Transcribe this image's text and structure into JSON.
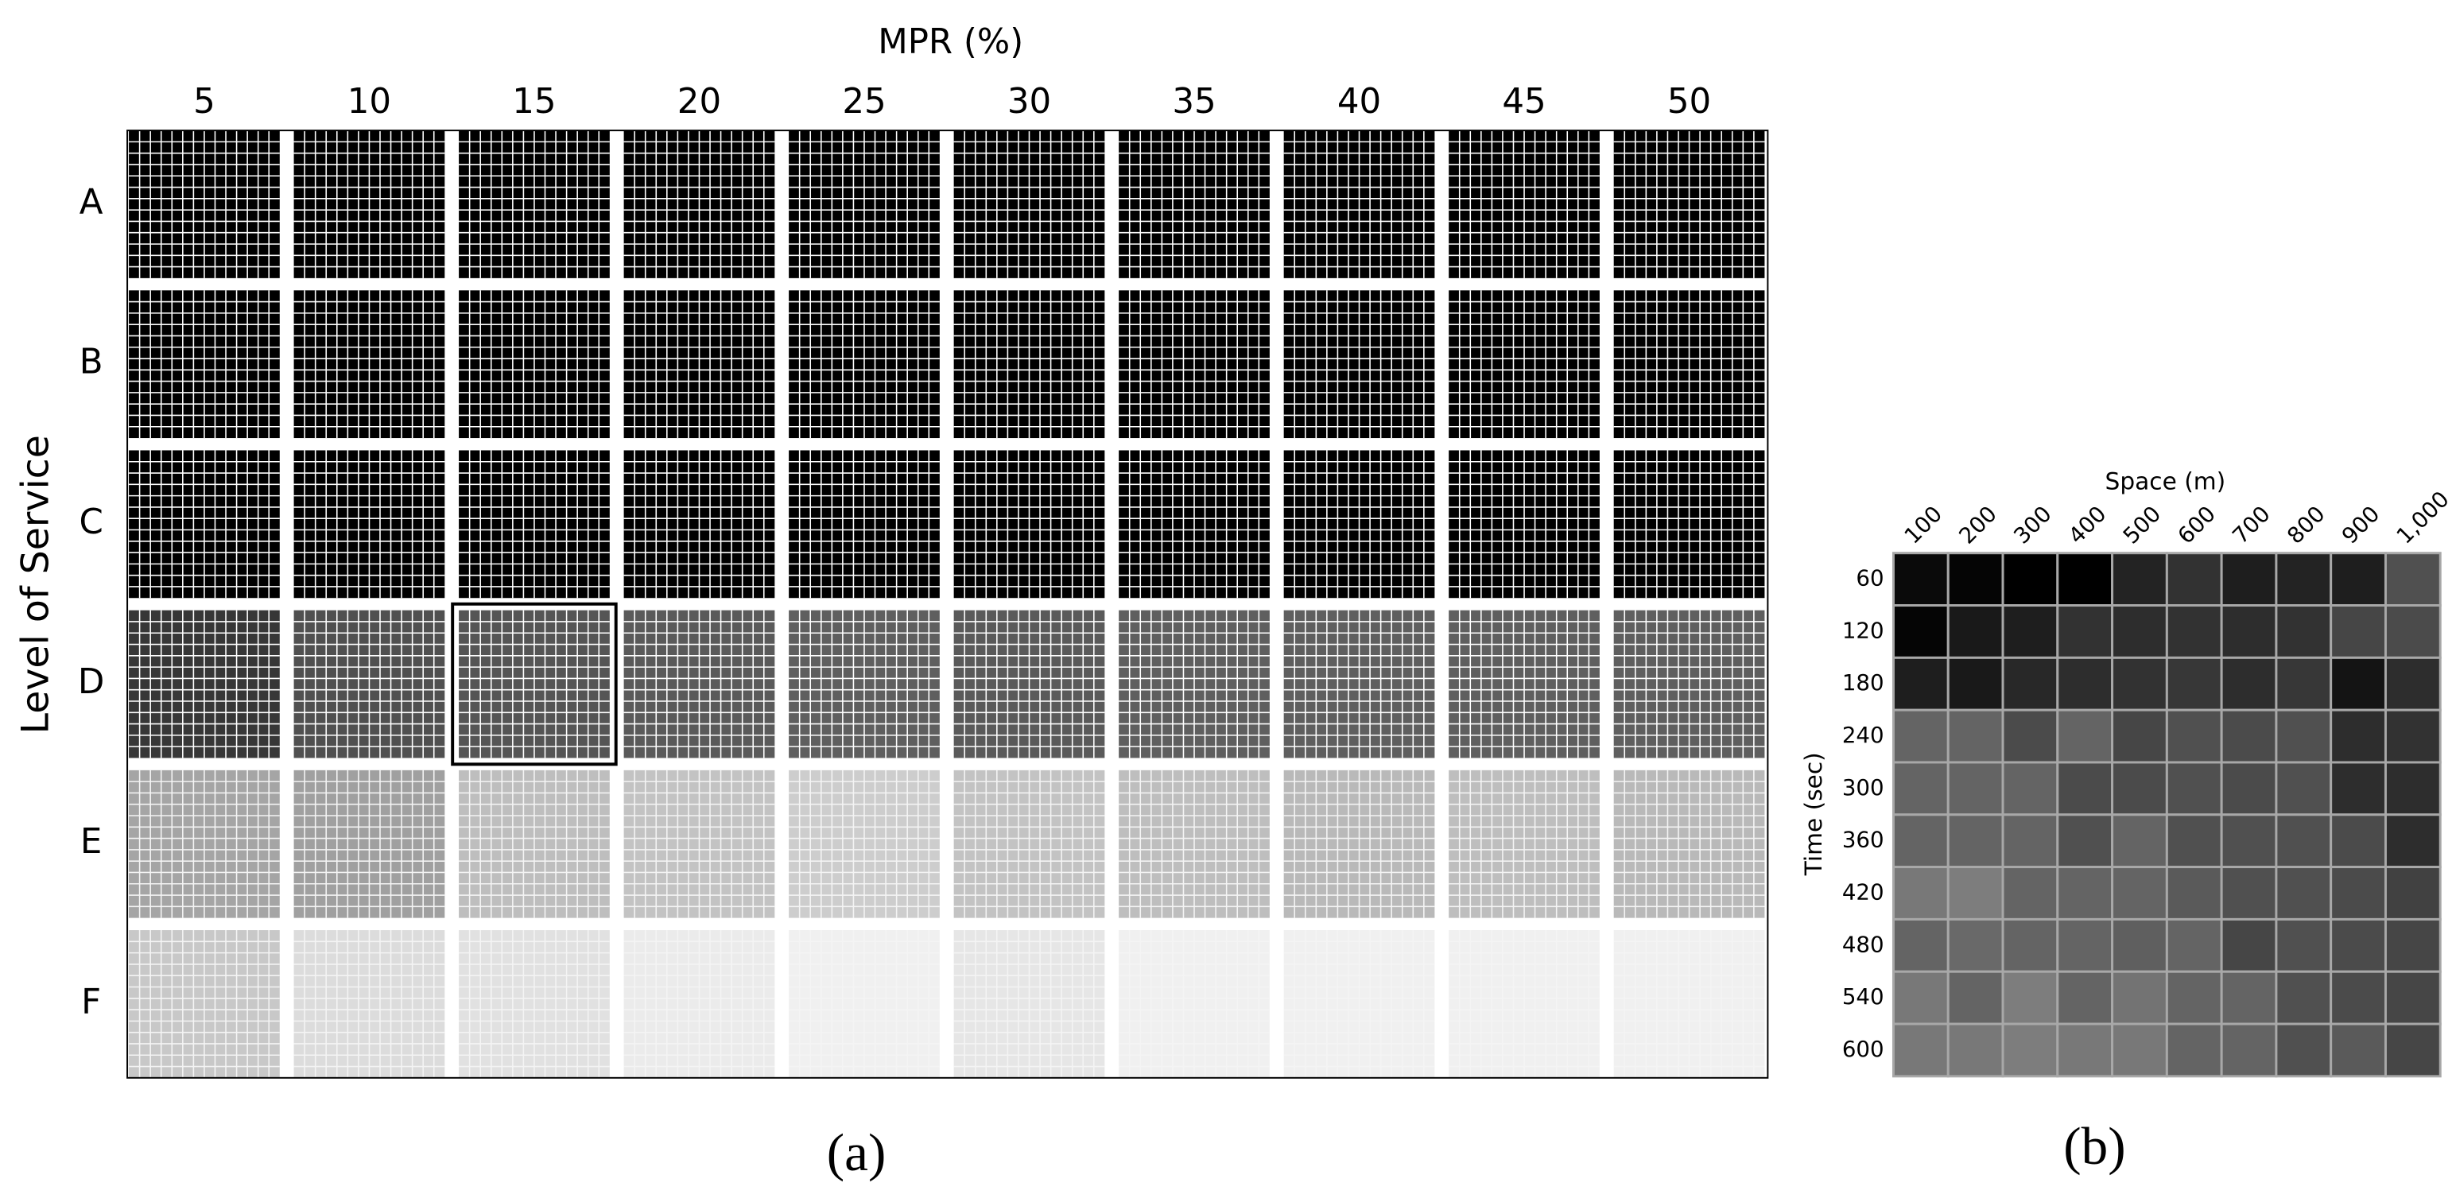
{
  "chart_data": [
    {
      "type": "heatmap",
      "title": "MPR (%)",
      "y_label": "Level of Service",
      "panel_label": "(a)",
      "categories": [
        "5",
        "10",
        "15",
        "20",
        "25",
        "30",
        "35",
        "40",
        "45",
        "50"
      ],
      "rows": [
        "A",
        "B",
        "C",
        "D",
        "E",
        "F"
      ],
      "values": [
        [
          0,
          0,
          0,
          0,
          0,
          0,
          0,
          0,
          0,
          0
        ],
        [
          0,
          0,
          0,
          0,
          0,
          0,
          0,
          0,
          0,
          0
        ],
        [
          0,
          0,
          0,
          0,
          0,
          0,
          0,
          0,
          0,
          0
        ],
        [
          55,
          80,
          85,
          90,
          95,
          90,
          95,
          95,
          95,
          95
        ],
        [
          165,
          160,
          190,
          195,
          205,
          195,
          190,
          185,
          190,
          185
        ],
        [
          200,
          220,
          225,
          235,
          240,
          230,
          240,
          240,
          240,
          240
        ]
      ]
    },
    {
      "type": "heatmap",
      "x_label": "Space (m)",
      "y_label": "Time (sec)",
      "panel_label": "(b)",
      "categories": [
        "100",
        "200",
        "300",
        "400",
        "500",
        "600",
        "700",
        "800",
        "900",
        "1,000"
      ],
      "rows": [
        "60",
        "120",
        "180",
        "240",
        "300",
        "360",
        "420",
        "480",
        "540",
        "600"
      ],
      "values": [
        [
          10,
          5,
          0,
          0,
          35,
          50,
          30,
          35,
          30,
          80
        ],
        [
          5,
          25,
          30,
          50,
          45,
          50,
          45,
          50,
          70,
          75
        ],
        [
          30,
          25,
          40,
          45,
          50,
          55,
          45,
          55,
          20,
          45
        ],
        [
          100,
          100,
          75,
          100,
          70,
          80,
          75,
          80,
          45,
          50
        ],
        [
          100,
          100,
          100,
          75,
          75,
          80,
          75,
          80,
          45,
          45
        ],
        [
          100,
          100,
          100,
          80,
          100,
          80,
          80,
          80,
          75,
          45
        ],
        [
          120,
          125,
          100,
          100,
          100,
          90,
          80,
          80,
          75,
          65
        ],
        [
          100,
          105,
          100,
          100,
          95,
          100,
          70,
          80,
          75,
          70
        ],
        [
          120,
          100,
          125,
          100,
          115,
          100,
          100,
          80,
          75,
          70
        ],
        [
          120,
          120,
          125,
          120,
          120,
          100,
          100,
          80,
          90,
          70
        ]
      ]
    }
  ]
}
